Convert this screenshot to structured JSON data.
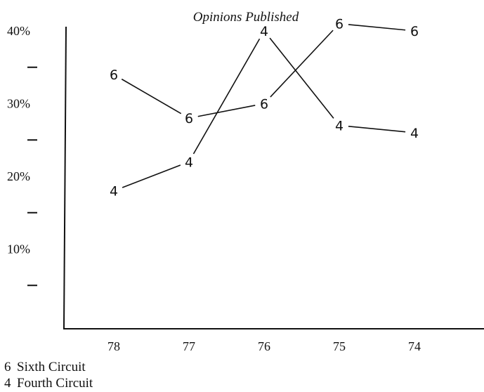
{
  "chart_data": {
    "type": "line",
    "title": "Opinions Published",
    "x_categories": [
      "78",
      "77",
      "76",
      "75",
      "74"
    ],
    "y_tick_labels": [
      "40%",
      "30%",
      "20%",
      "10%"
    ],
    "y_tick_values": [
      40,
      30,
      20,
      10
    ],
    "y_minor_ticks": [
      35,
      25,
      15,
      5
    ],
    "ylim": [
      0,
      45
    ],
    "series": [
      {
        "name": "Sixth Circuit",
        "marker": "6",
        "values": [
          34,
          28,
          30,
          41,
          40
        ]
      },
      {
        "name": "Fourth Circuit",
        "marker": "4",
        "values": [
          18,
          22,
          40,
          27,
          26
        ]
      }
    ],
    "legend": [
      {
        "key": "6",
        "label": "Sixth Circuit"
      },
      {
        "key": "4",
        "label": "Fourth Circuit"
      }
    ],
    "legend_position": "bottom-left",
    "grid": false
  }
}
